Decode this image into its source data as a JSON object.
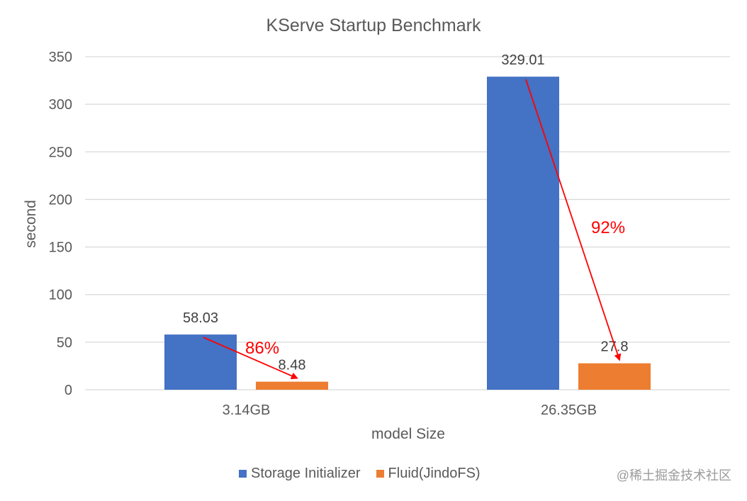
{
  "chart_data": {
    "type": "bar",
    "title": "KServe Startup Benchmark",
    "xlabel": "model Size",
    "ylabel": "second",
    "categories": [
      "3.14GB",
      "26.35GB"
    ],
    "series": [
      {
        "name": "Storage Initializer",
        "color": "#4472C4",
        "values": [
          58.03,
          329.01
        ],
        "labels": [
          "58.03",
          "329.01"
        ]
      },
      {
        "name": "Fluid(JindoFS)",
        "color": "#ED7D31",
        "values": [
          8.48,
          27.8
        ],
        "labels": [
          "8.48",
          "27.8"
        ]
      }
    ],
    "ylim": [
      0,
      350
    ],
    "yticks": [
      0,
      50,
      100,
      150,
      200,
      250,
      300,
      350
    ],
    "grid": true,
    "legend_position": "bottom",
    "annotations": [
      {
        "text": "86%",
        "category": "3.14GB",
        "color": "#FF0000"
      },
      {
        "text": "92%",
        "category": "26.35GB",
        "color": "#FF0000"
      }
    ]
  },
  "watermark": "@稀土掘金技术社区"
}
